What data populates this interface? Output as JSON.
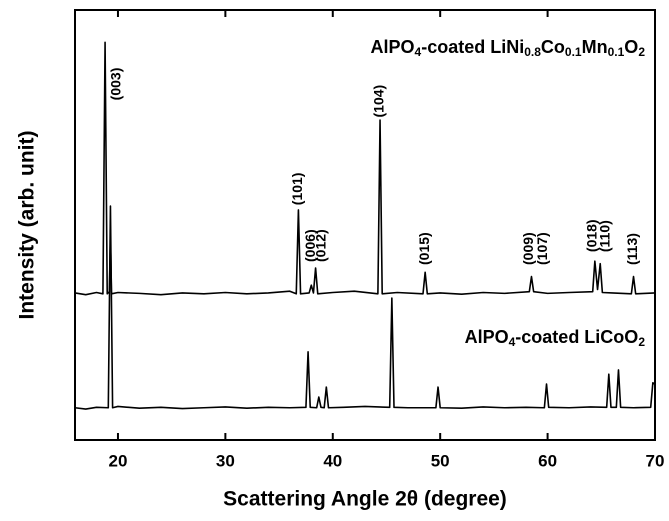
{
  "chart_data": {
    "type": "line",
    "x_label": "Scattering Angle 2θ (degree)",
    "y_label": "Intensity (arb. unit)",
    "xlim": [
      16,
      70
    ],
    "xticks": [
      20,
      30,
      40,
      50,
      60,
      70
    ],
    "ylim": [
      0,
      100
    ],
    "series": [
      {
        "name": "AlPO4-coated LiNi0.8Co0.1Mn0.1O2",
        "color": "#000000",
        "x": [
          16,
          17,
          18,
          18.6,
          18.8,
          19.0,
          19.2,
          19.3,
          19.4,
          20,
          22,
          24,
          26,
          28,
          30,
          32,
          34,
          36,
          36.6,
          36.8,
          37.0,
          37.8,
          38.0,
          38.2,
          38.4,
          38.6,
          40,
          42,
          44.2,
          44.4,
          44.6,
          46,
          48.4,
          48.6,
          48.8,
          50,
          52,
          54,
          56,
          58.3,
          58.5,
          58.7,
          60,
          62,
          64.2,
          64.4,
          64.65,
          64.9,
          65.1,
          66,
          67.8,
          68.0,
          68.2,
          70
        ],
        "values": [
          34.2,
          33.8,
          34.3,
          34,
          92.5,
          34,
          34.5,
          47,
          34,
          34.3,
          34.1,
          33.8,
          34.2,
          34,
          34.3,
          34,
          34.2,
          34.6,
          34,
          53.5,
          34,
          34.2,
          36,
          34.2,
          40,
          34,
          34.3,
          34.6,
          34,
          74.4,
          34,
          34.3,
          34,
          39,
          34,
          34.2,
          33.9,
          34.3,
          34.1,
          34.5,
          38,
          34.5,
          34.1,
          34.3,
          34.5,
          41.6,
          35,
          41,
          34.3,
          34.2,
          34,
          38,
          34,
          34.2
        ]
      },
      {
        "name": "AlPO4-coated LiCoO2",
        "color": "#000000",
        "x": [
          16,
          17,
          18,
          19.1,
          19.3,
          19.5,
          20,
          22,
          24,
          26,
          28,
          30,
          32,
          34,
          36,
          37.5,
          37.7,
          37.9,
          38.5,
          38.7,
          38.9,
          39.2,
          39.4,
          39.6,
          41,
          43,
          45.3,
          45.5,
          45.7,
          47,
          49.6,
          49.8,
          50,
          52,
          54,
          56,
          58,
          59.7,
          59.9,
          60.1,
          62,
          64,
          65.5,
          65.7,
          65.9,
          66.4,
          66.6,
          66.8,
          68,
          69.6,
          69.8,
          70
        ],
        "values": [
          7.5,
          7.2,
          7.6,
          7.5,
          54.4,
          7.5,
          7.8,
          7.4,
          7.6,
          7.3,
          7.5,
          7.7,
          7.4,
          7.6,
          7.5,
          7.6,
          20.5,
          7.6,
          7.5,
          10,
          7.6,
          7.5,
          12.3,
          7.5,
          7.6,
          7.8,
          7.6,
          33,
          7.6,
          7.5,
          7.5,
          12.3,
          7.5,
          7.4,
          7.7,
          7.5,
          7.6,
          7.5,
          13,
          7.6,
          7.5,
          7.7,
          7.6,
          15.3,
          7.6,
          7.6,
          16.3,
          7.6,
          7.5,
          7.6,
          13.3,
          13
        ]
      }
    ],
    "annotations": [
      {
        "text": "(003)",
        "x": 19.9,
        "y": 79
      },
      {
        "text": "(101)",
        "x": 36.8,
        "y": 54.6
      },
      {
        "text": "(006)",
        "x": 38.0,
        "y": 41.4
      },
      {
        "text": "(012)",
        "x": 39.0,
        "y": 41.4
      },
      {
        "text": "(104)",
        "x": 44.4,
        "y": 75
      },
      {
        "text": "(015)",
        "x": 48.6,
        "y": 40.7
      },
      {
        "text": "(009)",
        "x": 58.3,
        "y": 40.7
      },
      {
        "text": "(107)",
        "x": 59.6,
        "y": 40.7
      },
      {
        "text": "(018)",
        "x": 64.2,
        "y": 43.7
      },
      {
        "text": "(110)",
        "x": 65.4,
        "y": 43.7
      },
      {
        "text": "(113)",
        "x": 68.0,
        "y": 40.7
      }
    ]
  }
}
